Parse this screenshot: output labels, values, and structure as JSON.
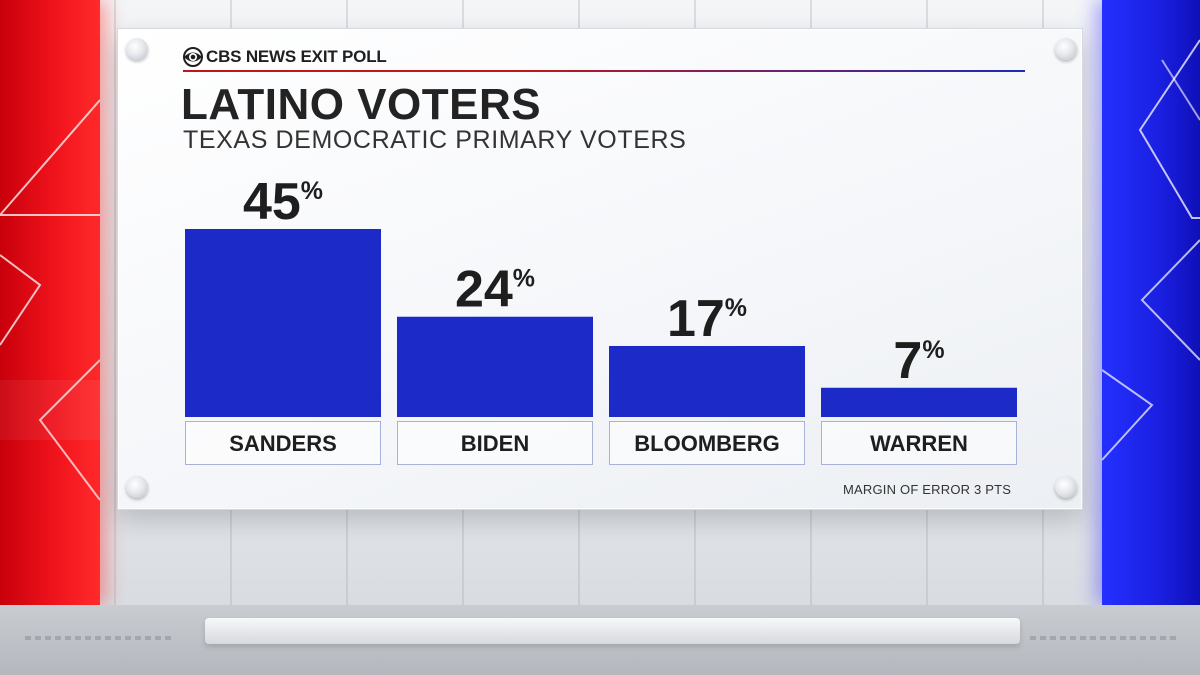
{
  "header": {
    "brand_text": "CBS NEWS EXIT POLL",
    "title": "LATINO VOTERS",
    "subtitle": "TEXAS DEMOCRATIC PRIMARY VOTERS"
  },
  "footnote": "MARGIN OF ERROR 3 PTS",
  "colors": {
    "bar": "#1c2bc8",
    "accent_red": "#c3161c",
    "accent_blue": "#1c2bb8",
    "side_left": "#f0131c",
    "side_right": "#1a1fe0"
  },
  "chart_data": {
    "type": "bar",
    "categories": [
      "SANDERS",
      "BIDEN",
      "BLOOMBERG",
      "WARREN"
    ],
    "values": [
      45,
      24,
      17,
      7
    ],
    "value_suffix": "%",
    "ylim": [
      0,
      45
    ],
    "grid": false,
    "title": "LATINO VOTERS",
    "subtitle": "TEXAS DEMOCRATIC PRIMARY VOTERS"
  }
}
